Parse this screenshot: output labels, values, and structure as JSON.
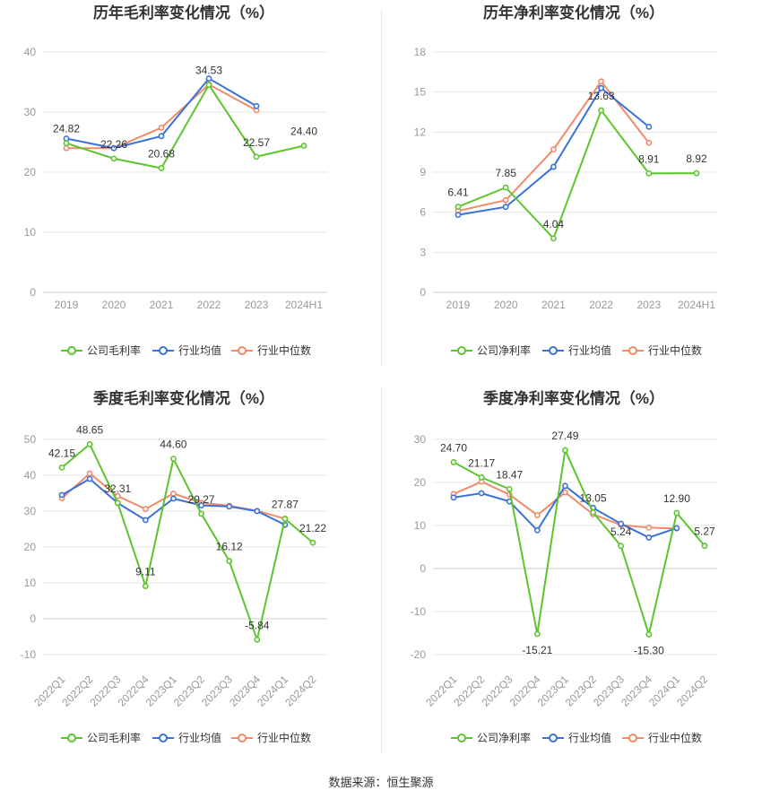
{
  "footer": "数据来源：恒生聚源",
  "colors": {
    "company": "#5cc52d",
    "industry_avg": "#3a72d8",
    "industry_median": "#f28a6a",
    "grid": "#e6e6e6",
    "tick": "#999999",
    "label": "#333333"
  },
  "chart_data": [
    {
      "type": "line",
      "title": "历年毛利率变化情况（%）",
      "categories": [
        "2019",
        "2020",
        "2021",
        "2022",
        "2023",
        "2024H1"
      ],
      "ylim": [
        0,
        40
      ],
      "yticks": [
        0,
        10,
        20,
        30,
        40
      ],
      "series": [
        {
          "name": "公司毛利率",
          "key": "company",
          "values": [
            24.82,
            22.26,
            20.68,
            34.53,
            22.57,
            24.4
          ]
        },
        {
          "name": "行业均值",
          "key": "industry_avg",
          "values": [
            25.6,
            24.0,
            26.0,
            35.6,
            31.0,
            null
          ]
        },
        {
          "name": "行业中位数",
          "key": "industry_median",
          "values": [
            24.0,
            24.0,
            27.4,
            34.6,
            30.3,
            null
          ]
        }
      ],
      "data_labels": [
        "24.82",
        "22.26",
        "20.68",
        "34.53",
        "22.57",
        "24.40"
      ],
      "legend_position": "bottom",
      "grid": true
    },
    {
      "type": "line",
      "title": "历年净利率变化情况（%）",
      "categories": [
        "2019",
        "2020",
        "2021",
        "2022",
        "2023",
        "2024H1"
      ],
      "ylim": [
        0,
        18
      ],
      "yticks": [
        0,
        3,
        6,
        9,
        12,
        15,
        18
      ],
      "series": [
        {
          "name": "公司净利率",
          "key": "company",
          "values": [
            6.41,
            7.85,
            4.04,
            13.63,
            8.91,
            8.92
          ]
        },
        {
          "name": "行业均值",
          "key": "industry_avg",
          "values": [
            5.8,
            6.4,
            9.4,
            15.3,
            12.4,
            null
          ]
        },
        {
          "name": "行业中位数",
          "key": "industry_median",
          "values": [
            6.1,
            6.9,
            10.7,
            15.8,
            11.2,
            null
          ]
        }
      ],
      "data_labels": [
        "6.41",
        "7.85",
        "4.04",
        "13.63",
        "8.91",
        "8.92"
      ],
      "legend_position": "bottom",
      "grid": true
    },
    {
      "type": "line",
      "title": "季度毛利率变化情况（%）",
      "categories": [
        "2022Q1",
        "2022Q2",
        "2022Q3",
        "2022Q4",
        "2023Q1",
        "2023Q2",
        "2023Q3",
        "2023Q4",
        "2024Q1",
        "2024Q2"
      ],
      "ylim": [
        -10,
        50
      ],
      "yticks": [
        -10,
        0,
        10,
        20,
        30,
        40,
        50
      ],
      "series": [
        {
          "name": "公司毛利率",
          "key": "company",
          "values": [
            42.15,
            48.65,
            32.31,
            9.11,
            44.6,
            29.27,
            16.12,
            -5.84,
            27.87,
            21.22
          ]
        },
        {
          "name": "行业均值",
          "key": "industry_avg",
          "values": [
            34.5,
            39.0,
            32.3,
            27.5,
            33.5,
            31.6,
            31.3,
            30.0,
            26.2,
            null
          ]
        },
        {
          "name": "行业中位数",
          "key": "industry_median",
          "values": [
            33.6,
            40.5,
            34.2,
            30.6,
            34.9,
            32.3,
            31.5,
            30.1,
            27.9,
            null
          ]
        }
      ],
      "data_labels": [
        "42.15",
        "48.65",
        "32.31",
        "9.11",
        "44.60",
        "29.27",
        "16.12",
        "-5.84",
        "27.87",
        "21.22"
      ],
      "legend_position": "bottom",
      "grid": true,
      "rotate_xticks": true
    },
    {
      "type": "line",
      "title": "季度净利率变化情况（%）",
      "categories": [
        "2022Q1",
        "2022Q2",
        "2022Q3",
        "2022Q4",
        "2023Q1",
        "2023Q2",
        "2023Q3",
        "2023Q4",
        "2024Q1",
        "2024Q2"
      ],
      "ylim": [
        -20,
        30
      ],
      "yticks": [
        -20,
        -10,
        0,
        10,
        20,
        30
      ],
      "series": [
        {
          "name": "公司净利率",
          "key": "company",
          "values": [
            24.7,
            21.17,
            18.47,
            -15.21,
            27.49,
            13.05,
            5.24,
            -15.3,
            12.9,
            5.27
          ]
        },
        {
          "name": "行业均值",
          "key": "industry_avg",
          "values": [
            16.5,
            17.5,
            15.6,
            8.9,
            19.2,
            14.1,
            10.4,
            7.2,
            9.4,
            null
          ]
        },
        {
          "name": "行业中位数",
          "key": "industry_median",
          "values": [
            17.3,
            20.2,
            17.2,
            12.4,
            17.7,
            12.6,
            10.1,
            9.5,
            9.3,
            null
          ]
        }
      ],
      "data_labels": [
        "24.70",
        "21.17",
        "18.47",
        "-15.21",
        "27.49",
        "13.05",
        "5.24",
        "-15.30",
        "12.90",
        "5.27"
      ],
      "legend_position": "bottom",
      "grid": true,
      "rotate_xticks": true
    }
  ]
}
